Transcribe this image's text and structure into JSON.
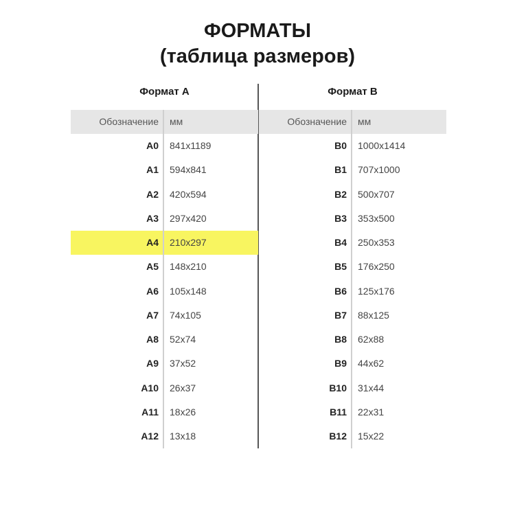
{
  "title": "ФОРМАТЫ",
  "subtitle": "(таблица размеров)",
  "highlight_color": "#f8f560",
  "tables": [
    {
      "heading": "Формат А",
      "col_headers": [
        "Обозначение",
        "мм"
      ],
      "highlighted": "A4",
      "rows": [
        [
          "A0",
          "841x1189"
        ],
        [
          "A1",
          "594x841"
        ],
        [
          "A2",
          "420x594"
        ],
        [
          "A3",
          "297x420"
        ],
        [
          "A4",
          "210x297"
        ],
        [
          "A5",
          "148x210"
        ],
        [
          "A6",
          "105x148"
        ],
        [
          "A7",
          "74x105"
        ],
        [
          "A8",
          "52x74"
        ],
        [
          "A9",
          "37x52"
        ],
        [
          "A10",
          "26x37"
        ],
        [
          "A11",
          "18x26"
        ],
        [
          "A12",
          "13x18"
        ]
      ]
    },
    {
      "heading": "Формат В",
      "col_headers": [
        "Обозначение",
        "мм"
      ],
      "highlighted": "",
      "rows": [
        [
          "B0",
          "1000x1414"
        ],
        [
          "B1",
          "707x1000"
        ],
        [
          "B2",
          "500x707"
        ],
        [
          "B3",
          "353x500"
        ],
        [
          "B4",
          "250x353"
        ],
        [
          "B5",
          "176x250"
        ],
        [
          "B6",
          "125x176"
        ],
        [
          "B7",
          "88x125"
        ],
        [
          "B8",
          "62x88"
        ],
        [
          "B9",
          "44x62"
        ],
        [
          "B10",
          "31x44"
        ],
        [
          "B11",
          "22x31"
        ],
        [
          "B12",
          "15x22"
        ]
      ]
    }
  ]
}
